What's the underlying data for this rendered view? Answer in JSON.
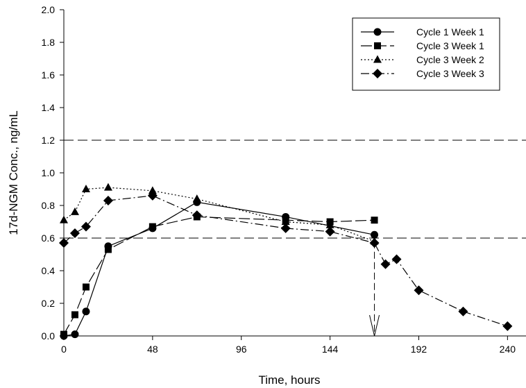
{
  "chart_data": {
    "type": "line",
    "xlabel": "Time, hours",
    "ylabel": "17d-NGM Conc., ng/mL",
    "xlim": [
      0,
      250
    ],
    "ylim": [
      0,
      2.0
    ],
    "xticks": [
      0,
      48,
      96,
      144,
      192,
      240
    ],
    "yticks": [
      0.0,
      0.2,
      0.4,
      0.6,
      0.8,
      1.0,
      1.2,
      1.4,
      1.6,
      1.8,
      2.0
    ],
    "xtick_labels": [
      "0",
      "48",
      "96",
      "144",
      "192",
      "240"
    ],
    "ytick_labels": [
      "0.0",
      "0.2",
      "0.4",
      "0.6",
      "0.8",
      "1.0",
      "1.2",
      "1.4",
      "1.6",
      "1.8",
      "2.0"
    ],
    "grid": false,
    "legend_position": "top-right",
    "reference_lines": [
      {
        "axis": "y",
        "value": 1.2,
        "style": "dashed"
      },
      {
        "axis": "y",
        "value": 0.6,
        "style": "dashed"
      },
      {
        "axis": "x",
        "value": 168,
        "style": "dashed",
        "y_range": [
          0.58,
          0
        ],
        "arrow": true
      }
    ],
    "series": [
      {
        "name": "Cycle 1 Week 1",
        "marker": "circle",
        "line": "solid",
        "x": [
          0,
          6,
          12,
          24,
          48,
          72,
          120,
          168
        ],
        "y": [
          0.0,
          0.01,
          0.15,
          0.55,
          0.66,
          0.82,
          0.73,
          0.62
        ]
      },
      {
        "name": "Cycle 3 Week 1",
        "marker": "square",
        "line": "longdash",
        "x": [
          0,
          6,
          12,
          24,
          48,
          72,
          120,
          144,
          168
        ],
        "y": [
          0.01,
          0.13,
          0.3,
          0.53,
          0.67,
          0.73,
          0.71,
          0.7,
          0.71
        ]
      },
      {
        "name": "Cycle 3 Week 2",
        "marker": "triangle",
        "line": "dotted",
        "x": [
          0,
          6,
          12,
          24,
          48,
          72,
          120,
          144,
          168
        ],
        "y": [
          0.71,
          0.76,
          0.9,
          0.91,
          0.89,
          0.84,
          0.7,
          0.68,
          0.58
        ]
      },
      {
        "name": "Cycle 3 Week 3",
        "marker": "diamond",
        "line": "dashdot",
        "x": [
          0,
          6,
          12,
          24,
          48,
          72,
          120,
          144,
          168,
          174,
          180,
          192,
          216,
          240
        ],
        "y": [
          0.57,
          0.63,
          0.67,
          0.83,
          0.86,
          0.74,
          0.66,
          0.64,
          0.57,
          0.44,
          0.47,
          0.28,
          0.15,
          0.06
        ]
      }
    ]
  }
}
